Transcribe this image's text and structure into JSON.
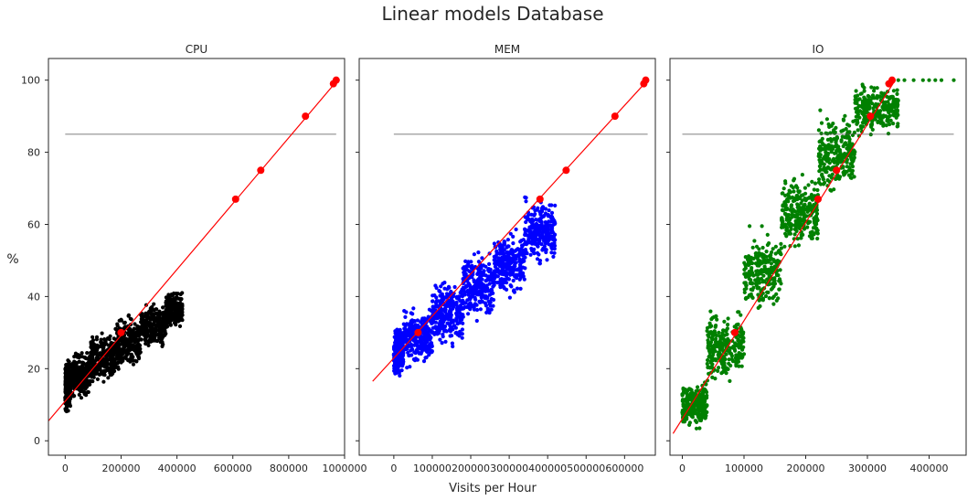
{
  "figure": {
    "title": "Linear models Database",
    "xlabel": "Visits per Hour",
    "ylabel": "%"
  },
  "chart_data": [
    {
      "type": "scatter",
      "title": "CPU",
      "xlim": [
        -60000,
        1000000
      ],
      "ylim": [
        -4,
        106
      ],
      "xticks": [
        0,
        200000,
        400000,
        600000,
        800000,
        1000000
      ],
      "xtick_labels": [
        "0",
        "200000",
        "400000",
        "600000",
        "800000",
        "1000000"
      ],
      "yticks": [
        0,
        20,
        40,
        60,
        80,
        100
      ],
      "ytick_labels": [
        "0",
        "20",
        "40",
        "60",
        "80",
        "100"
      ],
      "scatter_color": "#000000",
      "cloud": [
        {
          "x0": 0,
          "x1": 20000,
          "y0": 6,
          "y1": 24
        },
        {
          "x0": 20000,
          "x1": 90000,
          "y0": 10,
          "y1": 26
        },
        {
          "x0": 90000,
          "x1": 180000,
          "y0": 13,
          "y1": 31
        },
        {
          "x0": 180000,
          "x1": 270000,
          "y0": 17,
          "y1": 36
        },
        {
          "x0": 270000,
          "x1": 360000,
          "y0": 23,
          "y1": 40
        },
        {
          "x0": 360000,
          "x1": 420000,
          "y0": 30,
          "y1": 42
        }
      ],
      "fit_line": {
        "color": "#ff0000",
        "x": [
          -60000,
          975000
        ],
        "y": [
          5.5,
          100
        ]
      },
      "threshold": {
        "y": 85,
        "x": [
          0,
          970000
        ],
        "color": "#555555"
      },
      "markers": {
        "color": "#ff0000",
        "points": [
          [
            200000,
            30
          ],
          [
            610000,
            67
          ],
          [
            700000,
            75
          ],
          [
            860000,
            90
          ],
          [
            960000,
            99
          ],
          [
            970000,
            100
          ]
        ]
      }
    },
    {
      "type": "scatter",
      "title": "MEM",
      "xlim": [
        -90000,
        680000
      ],
      "ylim": [
        -4,
        106
      ],
      "xticks": [
        0,
        100000,
        200000,
        300000,
        400000,
        500000,
        600000
      ],
      "xtick_labels": [
        "0",
        "100000",
        "200000",
        "300000",
        "400000",
        "500000",
        "600000"
      ],
      "yticks": [
        0,
        20,
        40,
        60,
        80,
        100
      ],
      "ytick_labels": [
        "0",
        "20",
        "40",
        "60",
        "80",
        "100"
      ],
      "scatter_color": "#0000ff",
      "cloud": [
        {
          "x0": 0,
          "x1": 25000,
          "y0": 16,
          "y1": 33
        },
        {
          "x0": 25000,
          "x1": 100000,
          "y0": 18,
          "y1": 38
        },
        {
          "x0": 100000,
          "x1": 180000,
          "y0": 23,
          "y1": 47
        },
        {
          "x0": 180000,
          "x1": 260000,
          "y0": 30,
          "y1": 54
        },
        {
          "x0": 260000,
          "x1": 340000,
          "y0": 37,
          "y1": 60
        },
        {
          "x0": 340000,
          "x1": 420000,
          "y0": 46,
          "y1": 69
        }
      ],
      "fit_line": {
        "color": "#ff0000",
        "x": [
          -55000,
          660000
        ],
        "y": [
          16.5,
          100
        ]
      },
      "threshold": {
        "y": 85,
        "x": [
          0,
          660000
        ],
        "color": "#555555"
      },
      "markers": {
        "color": "#ff0000",
        "points": [
          [
            63000,
            30
          ],
          [
            380000,
            67
          ],
          [
            448000,
            75
          ],
          [
            575000,
            90
          ],
          [
            650000,
            99
          ],
          [
            655000,
            100
          ]
        ]
      }
    },
    {
      "type": "scatter",
      "title": "IO",
      "xlim": [
        -20000,
        460000
      ],
      "ylim": [
        -4,
        106
      ],
      "xticks": [
        0,
        100000,
        200000,
        300000,
        400000
      ],
      "xtick_labels": [
        "0",
        "100000",
        "200000",
        "300000",
        "400000"
      ],
      "yticks": [
        0,
        20,
        40,
        60,
        80,
        100
      ],
      "ytick_labels": [
        "0",
        "20",
        "40",
        "60",
        "80",
        "100"
      ],
      "scatter_color": "#008000",
      "cloud": [
        {
          "x0": 0,
          "x1": 40000,
          "y0": 2,
          "y1": 17
        },
        {
          "x0": 40000,
          "x1": 100000,
          "y0": 13,
          "y1": 38
        },
        {
          "x0": 100000,
          "x1": 160000,
          "y0": 32,
          "y1": 60
        },
        {
          "x0": 160000,
          "x1": 220000,
          "y0": 50,
          "y1": 76
        },
        {
          "x0": 220000,
          "x1": 280000,
          "y0": 66,
          "y1": 93
        },
        {
          "x0": 280000,
          "x1": 350000,
          "y0": 82,
          "y1": 100
        }
      ],
      "saturated_x": [
        350000,
        360000,
        375000,
        390000,
        400000,
        410000,
        420000,
        440000
      ],
      "saturated_y": 100,
      "fit_line": {
        "color": "#ff0000",
        "x": [
          -15000,
          345000
        ],
        "y": [
          2,
          100
        ]
      },
      "threshold": {
        "y": 85,
        "x": [
          0,
          440000
        ],
        "color": "#555555"
      },
      "markers": {
        "color": "#ff0000",
        "points": [
          [
            85000,
            30
          ],
          [
            220000,
            67
          ],
          [
            250000,
            75
          ],
          [
            305000,
            90
          ],
          [
            335000,
            99
          ],
          [
            340000,
            100
          ]
        ]
      }
    }
  ]
}
